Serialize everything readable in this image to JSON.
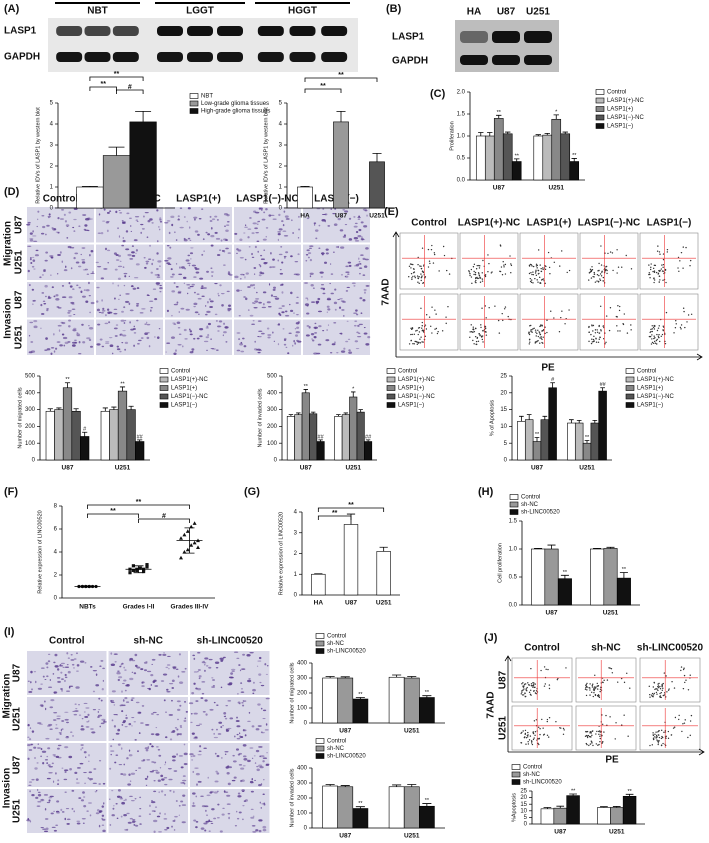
{
  "panels": {
    "A": "(A)",
    "B": "(B)",
    "C": "(C)",
    "D": "(D)",
    "E": "(E)",
    "F": "(F)",
    "G": "(G)",
    "H": "(H)",
    "I": "(I)",
    "J": "(J)"
  },
  "blot_a": {
    "groups": [
      "NBT",
      "LGGT",
      "HGGT"
    ],
    "rows": [
      "LASP1",
      "GAPDH"
    ]
  },
  "blot_b": {
    "lanes": [
      "HA",
      "U87",
      "U251"
    ],
    "rows": [
      "LASP1",
      "GAPDH"
    ]
  },
  "micro_d": {
    "columns": [
      "Control",
      "LASP1(+)-NC",
      "LASP1(+)",
      "LASP1(−)-NC",
      "LASP1(−)"
    ],
    "assays": [
      "Migration",
      "Invasion"
    ],
    "cells": [
      "U87",
      "U251"
    ]
  },
  "flow_e": {
    "columns": [
      "Control",
      "LASP1(+)-NC",
      "LASP1(+)",
      "LASP1(−)-NC",
      "LASP1(−)"
    ],
    "yaxis": "7AAD",
    "xaxis": "PE"
  },
  "micro_i": {
    "columns": [
      "Control",
      "sh-NC",
      "sh-LINC00520"
    ],
    "assays": [
      "Migration",
      "Invasion"
    ],
    "cells": [
      "U87",
      "U251"
    ]
  },
  "flow_j": {
    "columns": [
      "Control",
      "sh-NC",
      "sh-LINC00520"
    ],
    "cells": [
      "U87",
      "U251"
    ],
    "yaxis": "7AAD",
    "xaxis": "PE"
  },
  "chart_data": [
    {
      "type": "bar",
      "ylabel": "Relative IDVs of LASP1 by western blot",
      "categories": [
        null
      ],
      "series": [
        {
          "name": "NBT",
          "color": "#ffffff",
          "values": [
            1
          ],
          "errors": [
            0.03
          ]
        },
        {
          "name": "Low-grade glioma tissues",
          "color": "#999999",
          "values": [
            2.5
          ],
          "errors": [
            0.4
          ]
        },
        {
          "name": "High-grade glioma tissues",
          "color": "#111111",
          "values": [
            4.1
          ],
          "errors": [
            0.5
          ]
        }
      ],
      "ylim": [
        0,
        5
      ],
      "yticks": [
        0,
        1,
        2,
        3,
        4,
        5
      ],
      "annotations": [
        "**",
        "**",
        "#"
      ]
    },
    {
      "type": "bar",
      "ylabel": "Relative IDVs of LASP1 by western blot",
      "categories": [
        "HA",
        "U87",
        "U251"
      ],
      "values": [
        1,
        4.1,
        2.2
      ],
      "errors": [
        0.03,
        0.5,
        0.4
      ],
      "colors": [
        "#ffffff",
        "#999999",
        "#555555"
      ],
      "ylim": [
        0,
        5
      ],
      "yticks": [
        0,
        1,
        2,
        3,
        4,
        5
      ],
      "annotations": [
        "**",
        "**"
      ]
    },
    {
      "type": "bar",
      "ylabel": "Proliferation",
      "categories": [
        "U87",
        "U251"
      ],
      "series": [
        {
          "name": "Control",
          "color": "#ffffff",
          "values": [
            1.0,
            1.0
          ],
          "errors": [
            0.08,
            0.03
          ],
          "sig": [
            null,
            null
          ]
        },
        {
          "name": "LASP1(+)-NC",
          "color": "#bbbbbb",
          "values": [
            1.0,
            1.02
          ],
          "errors": [
            0.08,
            0.04
          ],
          "sig": [
            null,
            null
          ]
        },
        {
          "name": "LASP1(+)",
          "color": "#888888",
          "values": [
            1.4,
            1.38
          ],
          "errors": [
            0.07,
            0.1
          ],
          "sig": [
            "**",
            "*"
          ]
        },
        {
          "name": "LASP1(−)-NC",
          "color": "#555555",
          "values": [
            1.05,
            1.05
          ],
          "errors": [
            0.04,
            0.04
          ],
          "sig": [
            null,
            null
          ]
        },
        {
          "name": "LASP1(−)",
          "color": "#111111",
          "values": [
            0.42,
            0.42
          ],
          "errors": [
            0.06,
            0.07
          ],
          "sig": [
            "**",
            "**"
          ]
        }
      ],
      "ylim": [
        0,
        2
      ],
      "yticks": [
        {
          "value": 0,
          "label": "0.0"
        },
        0.5,
        {
          "value": 1,
          "label": "1.0"
        },
        1.5,
        {
          "value": 2,
          "label": "2.0"
        }
      ]
    },
    {
      "type": "bar",
      "ylabel": "Number of migrated cells",
      "categories": [
        "U87",
        "U251"
      ],
      "series": [
        {
          "name": "Control",
          "color": "#ffffff",
          "values": [
            290,
            290
          ],
          "errors": [
            15,
            20
          ],
          "sig": [
            null,
            null
          ]
        },
        {
          "name": "LASP1(+)-NC",
          "color": "#bbbbbb",
          "values": [
            300,
            300
          ],
          "errors": [
            10,
            15
          ],
          "sig": [
            null,
            null
          ]
        },
        {
          "name": "LASP1(+)",
          "color": "#888888",
          "values": [
            430,
            410
          ],
          "errors": [
            30,
            25
          ],
          "sig": [
            "**",
            "**"
          ]
        },
        {
          "name": "LASP1(−)-NC",
          "color": "#555555",
          "values": [
            290,
            300
          ],
          "errors": [
            15,
            20
          ],
          "sig": [
            null,
            null
          ]
        },
        {
          "name": "LASP1(−)",
          "color": "#111111",
          "values": [
            140,
            110
          ],
          "errors": [
            25,
            10
          ],
          "sig": [
            "#",
            "##"
          ]
        }
      ],
      "ylim": [
        0,
        500
      ],
      "yticks": [
        0,
        100,
        200,
        300,
        400,
        500
      ]
    },
    {
      "type": "bar",
      "ylabel": "Number of invaded cells",
      "categories": [
        "U87",
        "U251"
      ],
      "series": [
        {
          "name": "Control",
          "color": "#ffffff",
          "values": [
            260,
            260
          ],
          "errors": [
            10,
            10
          ],
          "sig": [
            null,
            null
          ]
        },
        {
          "name": "LASP1(+)-NC",
          "color": "#bbbbbb",
          "values": [
            270,
            270
          ],
          "errors": [
            10,
            10
          ],
          "sig": [
            null,
            null
          ]
        },
        {
          "name": "LASP1(+)",
          "color": "#888888",
          "values": [
            400,
            375
          ],
          "errors": [
            20,
            30
          ],
          "sig": [
            "**",
            "*"
          ]
        },
        {
          "name": "LASP1(−)-NC",
          "color": "#555555",
          "values": [
            275,
            285
          ],
          "errors": [
            10,
            15
          ],
          "sig": [
            null,
            null
          ]
        },
        {
          "name": "LASP1(−)",
          "color": "#111111",
          "values": [
            110,
            110
          ],
          "errors": [
            10,
            10
          ],
          "sig": [
            "##",
            "##"
          ]
        }
      ],
      "ylim": [
        0,
        500
      ],
      "yticks": [
        0,
        100,
        200,
        300,
        400,
        500
      ]
    },
    {
      "type": "bar",
      "ylabel": "% of Apoptosis",
      "categories": [
        "U87",
        "U251"
      ],
      "series": [
        {
          "name": "Control",
          "color": "#ffffff",
          "values": [
            11.5,
            11
          ],
          "errors": [
            1.5,
            1
          ],
          "sig": [
            null,
            null
          ]
        },
        {
          "name": "LASP1(+)-NC",
          "color": "#bbbbbb",
          "values": [
            12,
            11
          ],
          "errors": [
            1.5,
            0.8
          ],
          "sig": [
            null,
            null
          ]
        },
        {
          "name": "LASP1(+)",
          "color": "#888888",
          "values": [
            5.5,
            5
          ],
          "errors": [
            1.2,
            0.8
          ],
          "sig": [
            "**",
            "**"
          ]
        },
        {
          "name": "LASP1(−)-NC",
          "color": "#555555",
          "values": [
            12,
            11
          ],
          "errors": [
            1,
            0.8
          ],
          "sig": [
            null,
            null
          ]
        },
        {
          "name": "LASP1(−)",
          "color": "#111111",
          "values": [
            21.5,
            20.5
          ],
          "errors": [
            1.5,
            1
          ],
          "sig": [
            "#",
            "##"
          ]
        }
      ],
      "ylim": [
        0,
        25
      ],
      "yticks": [
        0,
        5,
        10,
        15,
        20,
        25
      ]
    },
    {
      "type": "dot",
      "ylabel": "Relative expression of LINC00520",
      "categories": [
        "NBTs",
        "Grades I-II",
        "Grades III-IV"
      ],
      "points": [
        [
          1,
          1,
          1,
          1,
          1,
          1,
          1,
          1,
          1,
          1
        ],
        [
          2.2,
          2.4,
          2.5,
          2.6,
          2.3,
          2.7,
          2.5,
          2.8,
          2.4,
          2.6,
          2.5,
          2.9
        ],
        [
          3.5,
          4.0,
          4.2,
          4.6,
          4.8,
          5.0,
          5.2,
          5.5,
          5.8,
          6.2,
          6.5,
          4.4
        ]
      ],
      "markers": [
        "circle",
        "square",
        "triangle"
      ],
      "means": [
        1,
        2.5,
        5
      ],
      "sd": [
        0.05,
        0.3,
        1.1
      ],
      "ylim": [
        0,
        8
      ],
      "yticks": [
        0,
        2,
        4,
        6,
        8
      ],
      "annotations": [
        "**",
        "**",
        "#"
      ]
    },
    {
      "type": "bar",
      "ylabel": "Relative expression of LINC00520",
      "categories": [
        "HA",
        "U87",
        "U251"
      ],
      "values": [
        1,
        3.4,
        2.1
      ],
      "errors": [
        0.02,
        0.5,
        0.2
      ],
      "color": "#ffffff",
      "ylim": [
        0,
        4
      ],
      "yticks": [
        0,
        1,
        2,
        3,
        4
      ],
      "annotations": [
        "**",
        "**"
      ]
    },
    {
      "type": "bar",
      "ylabel": "Cell proliferation",
      "categories": [
        "U87",
        "U251"
      ],
      "series": [
        {
          "name": "Control",
          "color": "#ffffff",
          "values": [
            1.0,
            1.0
          ],
          "errors": [
            0.01,
            0.01
          ],
          "sig": [
            null,
            null
          ]
        },
        {
          "name": "sh-NC",
          "color": "#999999",
          "values": [
            1.0,
            1.01
          ],
          "errors": [
            0.07,
            0.02
          ],
          "sig": [
            null,
            null
          ]
        },
        {
          "name": "sh-LINC00520",
          "color": "#111111",
          "values": [
            0.47,
            0.48
          ],
          "errors": [
            0.06,
            0.1
          ],
          "sig": [
            "**",
            "**"
          ]
        }
      ],
      "ylim": [
        0,
        1.5
      ],
      "yticks": [
        {
          "value": 0,
          "label": "0.0"
        },
        0.5,
        {
          "value": 1,
          "label": "1.0"
        },
        1.5
      ]
    },
    {
      "type": "bar",
      "ylabel": "Number of migrated cells",
      "categories": [
        "U87",
        "U251"
      ],
      "series": [
        {
          "name": "Control",
          "color": "#ffffff",
          "values": [
            300,
            305
          ],
          "errors": [
            10,
            15
          ],
          "sig": [
            null,
            null
          ]
        },
        {
          "name": "sh-NC",
          "color": "#999999",
          "values": [
            300,
            300
          ],
          "errors": [
            8,
            10
          ],
          "sig": [
            null,
            null
          ]
        },
        {
          "name": "sh-LINC00520",
          "color": "#111111",
          "values": [
            160,
            170
          ],
          "errors": [
            10,
            12
          ],
          "sig": [
            "**",
            "**"
          ]
        }
      ],
      "ylim": [
        0,
        400
      ],
      "yticks": [
        0,
        100,
        200,
        300,
        400
      ]
    },
    {
      "type": "bar",
      "ylabel": "Number of invaded cells",
      "categories": [
        "U87",
        "U251"
      ],
      "series": [
        {
          "name": "Control",
          "color": "#ffffff",
          "values": [
            280,
            275
          ],
          "errors": [
            10,
            12
          ],
          "sig": [
            null,
            null
          ]
        },
        {
          "name": "sh-NC",
          "color": "#999999",
          "values": [
            275,
            275
          ],
          "errors": [
            8,
            15
          ],
          "sig": [
            null,
            null
          ]
        },
        {
          "name": "sh-LINC00520",
          "color": "#111111",
          "values": [
            130,
            145
          ],
          "errors": [
            12,
            18
          ],
          "sig": [
            "**",
            "**"
          ]
        }
      ],
      "ylim": [
        0,
        400
      ],
      "yticks": [
        0,
        100,
        200,
        300,
        400
      ]
    },
    {
      "type": "bar",
      "ylabel": "%Apoptosis",
      "categories": [
        "U87",
        "U251"
      ],
      "series": [
        {
          "name": "Control",
          "color": "#ffffff",
          "values": [
            11.5,
            12.5
          ],
          "errors": [
            1,
            0.6
          ],
          "sig": [
            null,
            null
          ]
        },
        {
          "name": "sh-NC",
          "color": "#999999",
          "values": [
            12,
            12.5
          ],
          "errors": [
            1.5,
            0.8
          ],
          "sig": [
            null,
            null
          ]
        },
        {
          "name": "sh-LINC00520",
          "color": "#111111",
          "values": [
            21.5,
            21
          ],
          "errors": [
            1.2,
            1.5
          ],
          "sig": [
            "**",
            "**"
          ]
        }
      ],
      "ylim": [
        0,
        25
      ],
      "yticks": [
        0,
        5,
        10,
        15,
        20,
        25
      ]
    }
  ]
}
